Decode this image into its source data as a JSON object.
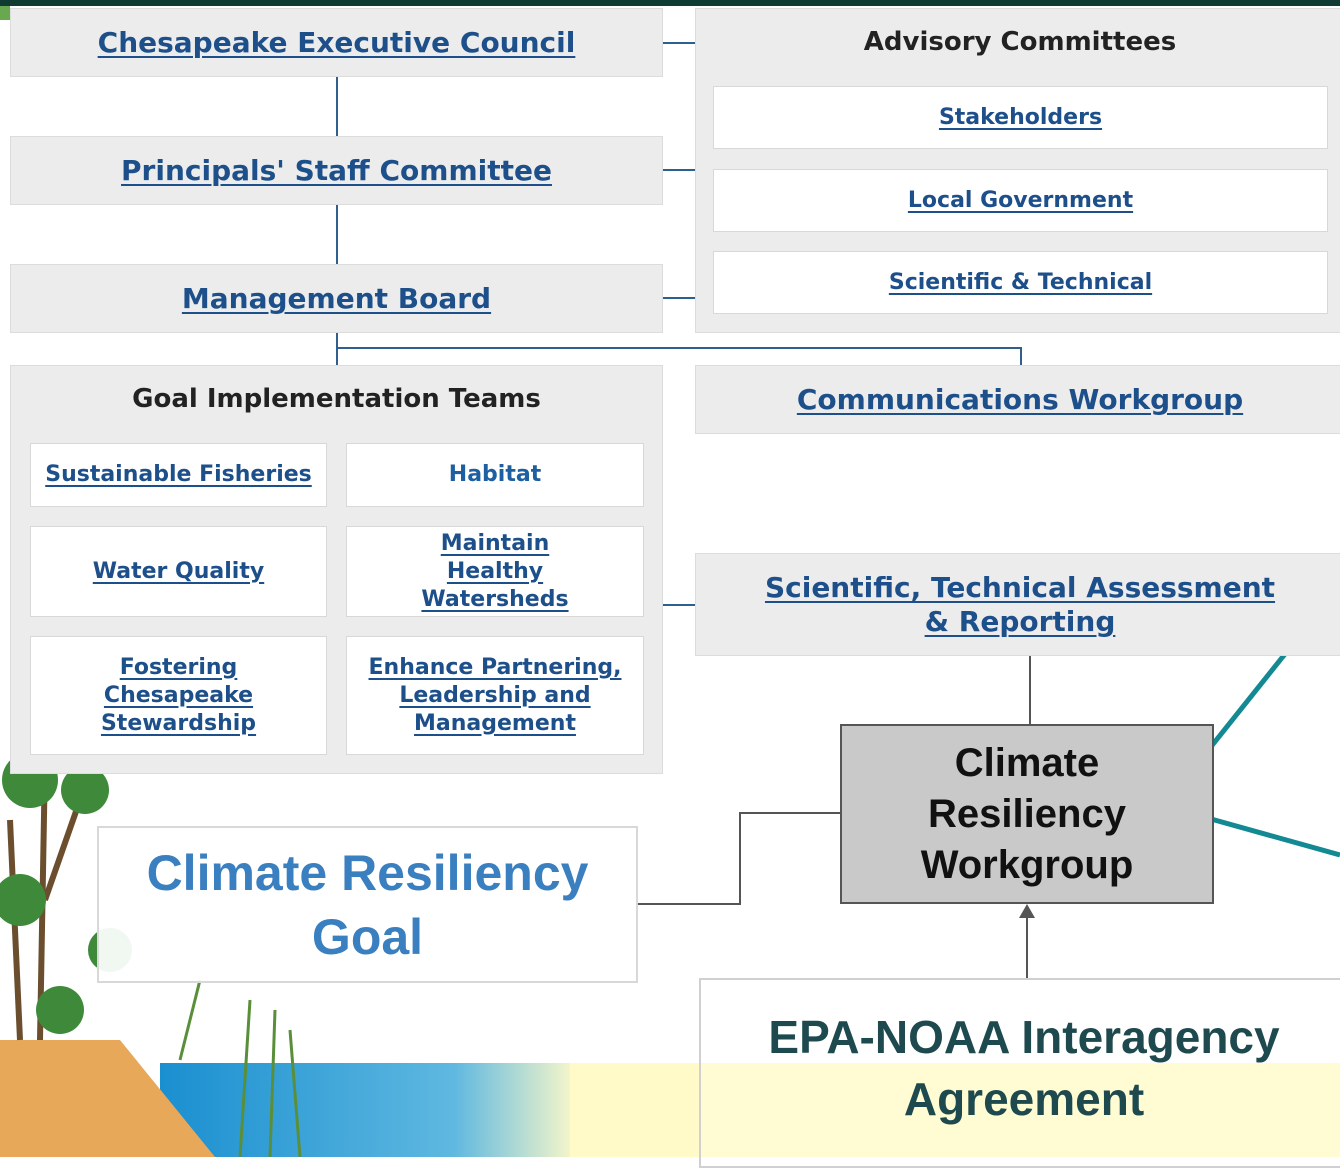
{
  "council": "Chesapeake Executive Council",
  "psc": "Principals' Staff Committee",
  "board": "Management Board",
  "advisory": {
    "title": "Advisory Committees",
    "items": [
      "Stakeholders",
      "Local Government",
      "Scientific & Technical"
    ]
  },
  "git": {
    "title": "Goal Implementation Teams",
    "items": [
      "Sustainable Fisheries",
      "Habitat",
      "Water Quality",
      "Maintain Healthy Watersheds",
      "Fostering Chesapeake Stewardship",
      "Enhance Partnering, Leadership and Management"
    ]
  },
  "communications": "Communications Workgroup",
  "star": "Scientific, Technical Assessment & Reporting",
  "workgroup": "Climate Resiliency Workgroup",
  "goal": "Climate Resiliency Goal",
  "agreement": "EPA-NOAA Interagency Agreement"
}
